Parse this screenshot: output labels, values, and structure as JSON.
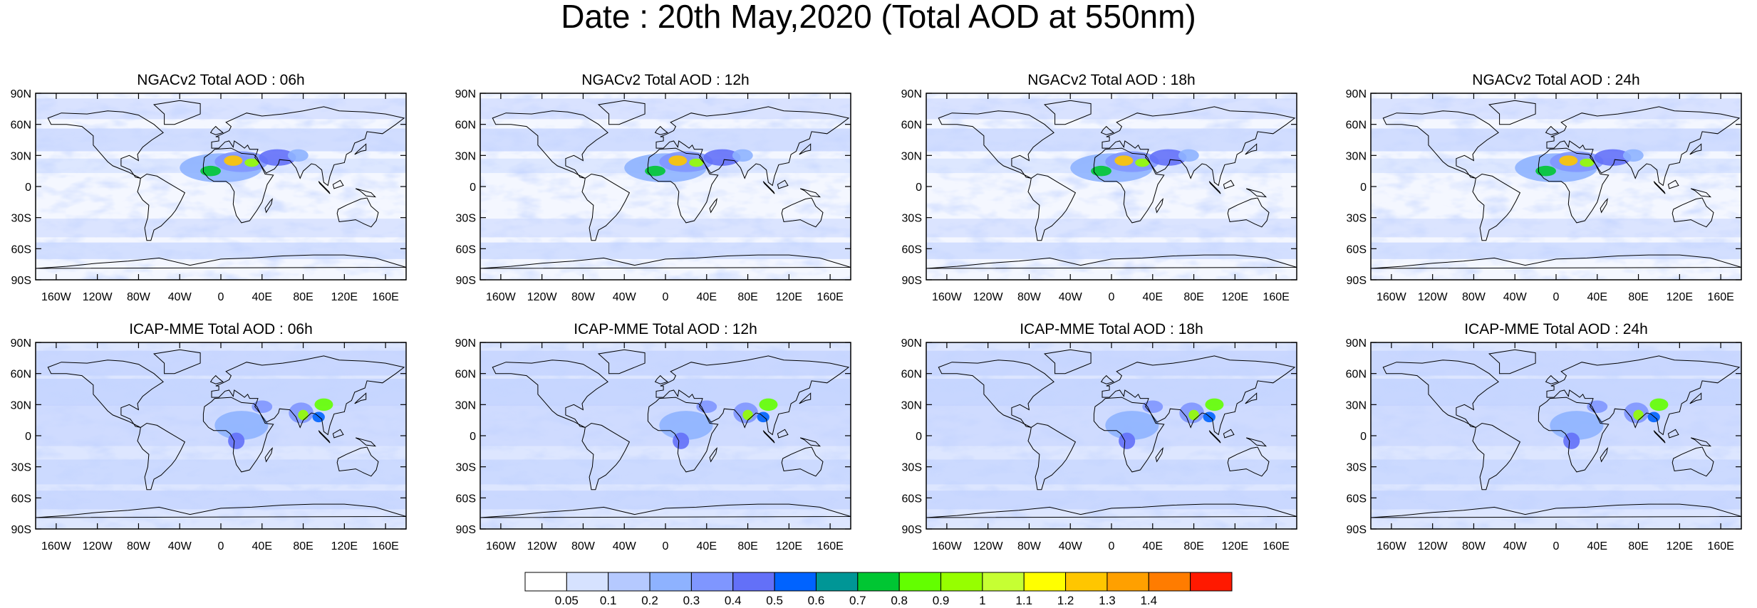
{
  "figure": {
    "title": "Date : 20th May,2020 (Total AOD at 550nm)"
  },
  "panels": [
    {
      "title": "NGACv2 Total AOD : 06h",
      "model": "NGACv2",
      "hour": "06h"
    },
    {
      "title": "NGACv2 Total AOD : 12h",
      "model": "NGACv2",
      "hour": "12h"
    },
    {
      "title": "NGACv2 Total AOD : 18h",
      "model": "NGACv2",
      "hour": "18h"
    },
    {
      "title": "NGACv2 Total AOD : 24h",
      "model": "NGACv2",
      "hour": "24h"
    },
    {
      "title": "ICAP-MME Total AOD : 06h",
      "model": "ICAP-MME",
      "hour": "06h"
    },
    {
      "title": "ICAP-MME Total AOD : 12h",
      "model": "ICAP-MME",
      "hour": "12h"
    },
    {
      "title": "ICAP-MME Total AOD : 18h",
      "model": "ICAP-MME",
      "hour": "18h"
    },
    {
      "title": "ICAP-MME Total AOD : 24h",
      "model": "ICAP-MME",
      "hour": "24h"
    }
  ],
  "axes": {
    "lat_labels": [
      "90N",
      "60N",
      "30N",
      "0",
      "30S",
      "60S",
      "90S"
    ],
    "lat_values": [
      90,
      60,
      30,
      0,
      -30,
      -60,
      -90
    ],
    "lon_labels": [
      "160W",
      "120W",
      "80W",
      "40W",
      "0",
      "40E",
      "80E",
      "120E",
      "160E"
    ],
    "lon_values": [
      -160,
      -120,
      -80,
      -40,
      0,
      40,
      80,
      120,
      160
    ],
    "lon_range": [
      -180,
      180
    ],
    "lat_range": [
      -90,
      90
    ]
  },
  "colorbar": {
    "labels": [
      "0.05",
      "0.1",
      "0.2",
      "0.3",
      "0.4",
      "0.5",
      "0.6",
      "0.7",
      "0.8",
      "0.9",
      "1",
      "1.1",
      "1.2",
      "1.3",
      "1.4"
    ],
    "colors": [
      "#ffffff",
      "#d6e2ff",
      "#b5c9ff",
      "#8eb2ff",
      "#7f96ff",
      "#6370f8",
      "#0063ff",
      "#009696",
      "#00c633",
      "#63ff00",
      "#96ff00",
      "#c6ff33",
      "#ffff00",
      "#ffc600",
      "#ffa000",
      "#ff7c00",
      "#ff1900"
    ]
  }
}
